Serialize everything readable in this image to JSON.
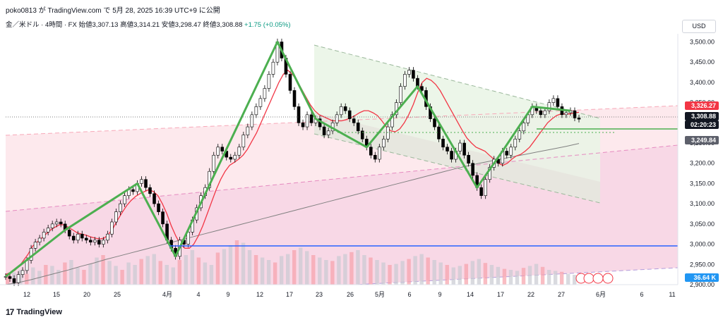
{
  "header": {
    "author_line": "poko0813 が TradingView.com で 5月 28, 2025 16:39 UTC+9 に公開",
    "symbol": "金／米ドル · 4時間 · FX",
    "open_label": "始値",
    "open": "3,307.13",
    "high_label": "高値",
    "high": "3,314.21",
    "low_label": "安値",
    "low": "3,298.47",
    "close_label": "終値",
    "close": "3,308.88",
    "change": "+1.75 (+0.05%)"
  },
  "currency_button": "USD",
  "footer": {
    "brand": "TradingView",
    "logo_glyph": "17"
  },
  "price_labels": {
    "red_line": "3,326.27",
    "last": "3,308.88",
    "countdown": "02:20:23",
    "gray_ma": "3,249.84",
    "volume": "36.64 K"
  },
  "colors": {
    "up": "#089981",
    "down": "#f23645",
    "candle": "#000000",
    "ma_fast": "#f23645",
    "ma_slow": "#808080",
    "pattern": "#4caf50",
    "support_line": "#2962ff"
  },
  "chart_data": {
    "type": "candlestick",
    "ylim": [
      2900,
      3520
    ],
    "y_ticks": [
      2900,
      2950,
      3000,
      3050,
      3100,
      3150,
      3200,
      3250,
      3300,
      3350,
      3400,
      3450,
      3500
    ],
    "y_tick_labels": [
      "2,900.00",
      "2,950.00",
      "3,000.00",
      "3,050.00",
      "3,100.00",
      "3,150.00",
      "3,200.00",
      "3,250.00",
      "3,300.00",
      "3,350.00",
      "3,400.00",
      "3,450.00",
      "3,500.00"
    ],
    "x_tick_labels": [
      "12",
      "15",
      "20",
      "25",
      "4月",
      "4",
      "9",
      "12",
      "17",
      "23",
      "26",
      "5月",
      "6",
      "9",
      "14",
      "17",
      "22",
      "27",
      "6月",
      "6",
      "11"
    ],
    "close_path": [
      2920,
      2915,
      2905,
      2925,
      2935,
      2960,
      2990,
      3005,
      3015,
      3030,
      3040,
      3050,
      3055,
      3050,
      3035,
      3020,
      3010,
      3025,
      3015,
      3010,
      3005,
      3010,
      3000,
      3010,
      3025,
      3055,
      3080,
      3100,
      3120,
      3135,
      3130,
      3150,
      3160,
      3140,
      3125,
      3100,
      3080,
      3050,
      3010,
      2990,
      2970,
      3010,
      3000,
      3030,
      3060,
      3090,
      3120,
      3140,
      3180,
      3220,
      3240,
      3230,
      3215,
      3210,
      3220,
      3240,
      3270,
      3290,
      3320,
      3340,
      3360,
      3385,
      3420,
      3450,
      3500,
      3460,
      3420,
      3380,
      3340,
      3300,
      3290,
      3320,
      3300,
      3310,
      3290,
      3270,
      3280,
      3300,
      3320,
      3340,
      3330,
      3310,
      3300,
      3280,
      3260,
      3240,
      3220,
      3210,
      3240,
      3260,
      3290,
      3320,
      3350,
      3390,
      3420,
      3430,
      3410,
      3390,
      3380,
      3340,
      3310,
      3290,
      3260,
      3240,
      3230,
      3210,
      3230,
      3250,
      3220,
      3200,
      3170,
      3140,
      3120,
      3160,
      3190,
      3210,
      3200,
      3230,
      3220,
      3240,
      3260,
      3280,
      3300,
      3320,
      3340,
      3330,
      3320,
      3330,
      3350,
      3360,
      3340,
      3320,
      3325,
      3330,
      3312,
      3309
    ],
    "ma_fast": [
      2925,
      2930,
      2935,
      2945,
      2960,
      2975,
      2995,
      3005,
      3015,
      3025,
      3035,
      3042,
      3048,
      3048,
      3042,
      3035,
      3028,
      3025,
      3022,
      3018,
      3015,
      3013,
      3015,
      3025,
      3040,
      3060,
      3078,
      3095,
      3108,
      3118,
      3125,
      3130,
      3135,
      3130,
      3120,
      3100,
      3075,
      3045,
      3020,
      3000,
      2990,
      2990,
      3000,
      3020,
      3045,
      3075,
      3105,
      3135,
      3160,
      3180,
      3195,
      3202,
      3210,
      3220,
      3235,
      3255,
      3275,
      3300,
      3325,
      3350,
      3375,
      3400,
      3420,
      3430,
      3420,
      3405,
      3385,
      3365,
      3345,
      3330,
      3320,
      3315,
      3310,
      3305,
      3305,
      3305,
      3308,
      3312,
      3318,
      3325,
      3330,
      3330,
      3325,
      3318,
      3305,
      3290,
      3280,
      3278,
      3285,
      3300,
      3320,
      3345,
      3375,
      3400,
      3410,
      3405,
      3395,
      3380,
      3360,
      3340,
      3320,
      3300,
      3280,
      3262,
      3250,
      3240,
      3235,
      3230,
      3220,
      3210,
      3200,
      3195,
      3200,
      3210,
      3218,
      3222,
      3230,
      3240,
      3255,
      3270,
      3285,
      3300,
      3310,
      3318,
      3322,
      3322,
      3322,
      3325,
      3326
    ],
    "ma_slow": [
      2900,
      2905,
      2912,
      2920,
      2928,
      2936,
      2945,
      2953,
      2962,
      2970,
      2978,
      2986,
      2994,
      3002,
      3010,
      3018,
      3026,
      3034,
      3042,
      3050,
      3058,
      3066,
      3074,
      3082,
      3090,
      3098,
      3106,
      3114,
      3122,
      3130,
      3138,
      3146,
      3154,
      3162,
      3170,
      3178,
      3186,
      3193,
      3200,
      3206,
      3212,
      3218,
      3224,
      3230,
      3236,
      3242,
      3249
    ],
    "volume_ylim": [
      0,
      100
    ],
    "volume": [
      20,
      25,
      30,
      22,
      35,
      28,
      40,
      38,
      30,
      45,
      50,
      35,
      30,
      42,
      55,
      60,
      48,
      38,
      30,
      45,
      40,
      52,
      58,
      62,
      48,
      40,
      35,
      50,
      60,
      70,
      55,
      45,
      40,
      65,
      72,
      80,
      90,
      85,
      70,
      60,
      55,
      50,
      45,
      58,
      62,
      70,
      75,
      68,
      60,
      55,
      50,
      48,
      58,
      62,
      66,
      70,
      60,
      55,
      50,
      45,
      40,
      42,
      48,
      52,
      58,
      62,
      55,
      50,
      45,
      40,
      35,
      38,
      42,
      48,
      52,
      44,
      40,
      36,
      32,
      30,
      28,
      34,
      38,
      42,
      36,
      30,
      28,
      26,
      22,
      20
    ]
  }
}
